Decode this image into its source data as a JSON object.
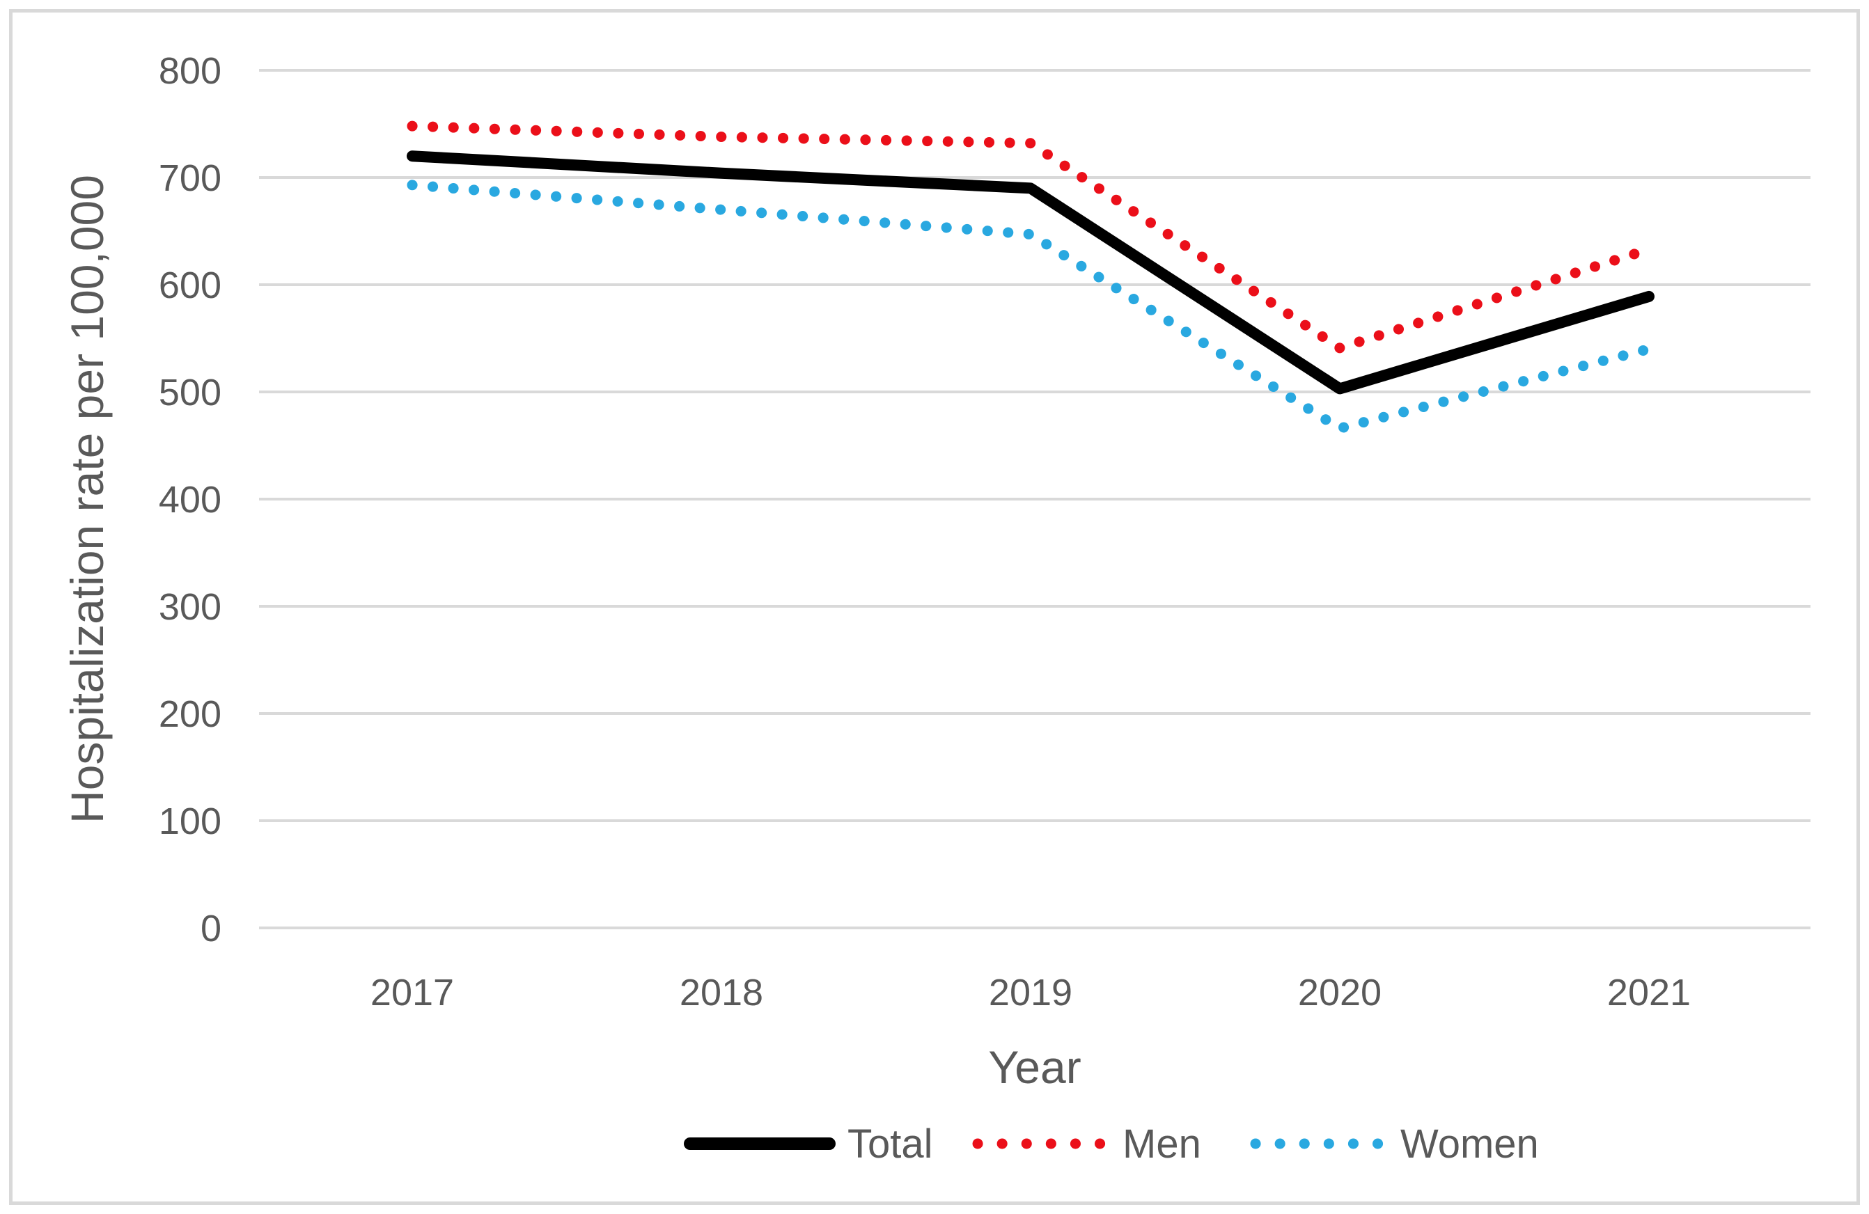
{
  "figure": {
    "background": "#ffffff",
    "border_color": "#d9d9d9"
  },
  "chart_data": {
    "type": "line",
    "title": "",
    "xlabel": "Year",
    "ylabel": "Hospitalization rate per 100,000",
    "categories": [
      "2017",
      "2018",
      "2019",
      "2020",
      "2021"
    ],
    "series": [
      {
        "name": "Total",
        "style": "solid",
        "color": "#000000",
        "values": [
          720,
          704,
          690,
          503,
          589
        ]
      },
      {
        "name": "Men",
        "style": "dotted",
        "color": "#eb0f19",
        "values": [
          748,
          738,
          732,
          541,
          633
        ]
      },
      {
        "name": "Women",
        "style": "dotted",
        "color": "#29a8e0",
        "values": [
          693,
          670,
          647,
          466,
          540
        ]
      }
    ],
    "ylim": [
      0,
      800
    ],
    "yticks": [
      0,
      100,
      200,
      300,
      400,
      500,
      600,
      700,
      800
    ],
    "grid": true,
    "legend_position": "bottom",
    "colors": {
      "text": "#595959",
      "gridline": "#d9d9d9"
    }
  }
}
